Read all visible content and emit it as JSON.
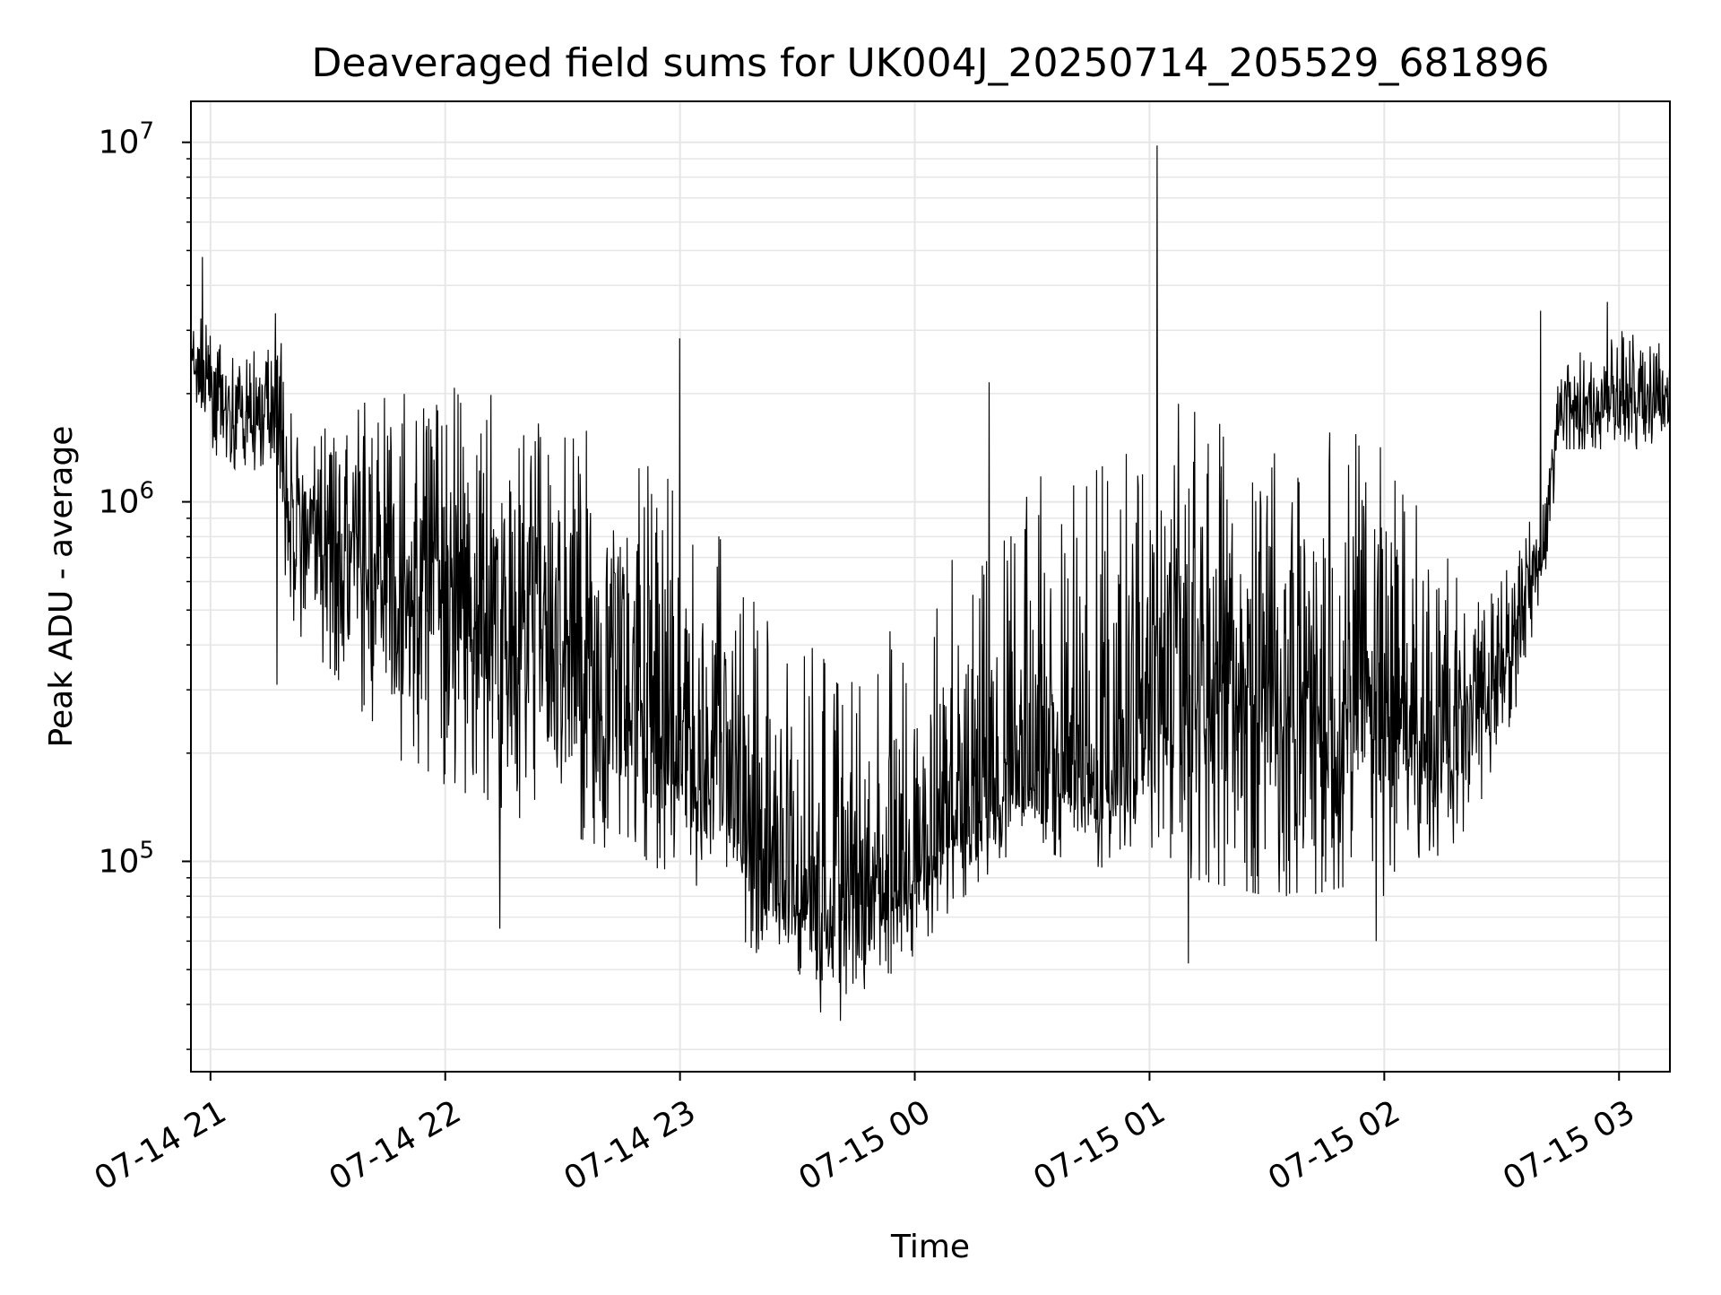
{
  "chart_data": {
    "type": "line",
    "title": "Deaveraged field sums for UK004J_20250714_205529_681896",
    "xlabel": "Time",
    "ylabel": "Peak ADU - average",
    "yscale": "log",
    "grid": true,
    "x_tick_labels": [
      "07-14 21",
      "07-14 22",
      "07-14 23",
      "07-15 00",
      "07-15 01",
      "07-15 02",
      "07-15 03"
    ],
    "x_ticks": [
      "2025-07-14T21:00",
      "2025-07-14T22:00",
      "2025-07-14T23:00",
      "2025-07-15T00:00",
      "2025-07-15T01:00",
      "2025-07-15T02:00",
      "2025-07-15T03:00"
    ],
    "y_ticks": [
      {
        "value": 100000,
        "base": "10",
        "exp": "5"
      },
      {
        "value": 1000000,
        "base": "10",
        "exp": "6"
      },
      {
        "value": 10000000,
        "base": "10",
        "exp": "7"
      }
    ],
    "xlim": [
      "2025-07-14T20:55",
      "2025-07-15T03:13"
    ],
    "ylim": [
      26000,
      13000000
    ],
    "line_color": "#000000",
    "grid_color": "#e6e6e6",
    "series": [
      {
        "x": [
          "2025-07-14T20:55",
          "2025-07-14T21:00",
          "2025-07-14T21:05",
          "2025-07-14T21:10",
          "2025-07-14T21:15",
          "2025-07-14T21:17",
          "2025-07-14T21:20",
          "2025-07-14T21:25",
          "2025-07-14T21:30",
          "2025-07-14T21:40",
          "2025-07-14T21:50",
          "2025-07-14T22:00",
          "2025-07-14T22:10",
          "2025-07-14T22:20",
          "2025-07-14T22:30",
          "2025-07-14T22:40",
          "2025-07-14T22:50",
          "2025-07-14T23:00",
          "2025-07-14T23:10",
          "2025-07-14T23:20",
          "2025-07-14T23:30",
          "2025-07-14T23:40",
          "2025-07-14T23:50",
          "2025-07-15T00:00",
          "2025-07-15T00:10",
          "2025-07-15T00:20",
          "2025-07-15T00:30",
          "2025-07-15T00:40",
          "2025-07-15T00:50",
          "2025-07-15T01:00",
          "2025-07-15T01:10",
          "2025-07-15T01:20",
          "2025-07-15T01:30",
          "2025-07-15T01:40",
          "2025-07-15T01:50",
          "2025-07-15T02:00",
          "2025-07-15T02:10",
          "2025-07-15T02:20",
          "2025-07-15T02:30",
          "2025-07-15T02:35",
          "2025-07-15T02:40",
          "2025-07-15T02:45",
          "2025-07-15T02:50",
          "2025-07-15T03:00",
          "2025-07-15T03:13"
        ],
        "median": [
          2400000,
          2000000,
          1700000,
          1700000,
          1800000,
          2000000,
          900000,
          750000,
          700000,
          650000,
          600000,
          550000,
          500000,
          450000,
          380000,
          320000,
          260000,
          200000,
          140000,
          95000,
          78000,
          75000,
          80000,
          90000,
          120000,
          150000,
          170000,
          160000,
          175000,
          220000,
          280000,
          300000,
          290000,
          270000,
          280000,
          260000,
          230000,
          220000,
          330000,
          500000,
          700000,
          1800000,
          1800000,
          1850000,
          1900000
        ],
        "low": [
          1800000,
          1400000,
          1200000,
          1200000,
          1300000,
          1400000,
          450000,
          380000,
          350000,
          250000,
          180000,
          160000,
          150000,
          130000,
          120000,
          110000,
          100000,
          90000,
          70000,
          55000,
          45000,
          42000,
          45000,
          55000,
          75000,
          95000,
          110000,
          100000,
          95000,
          100000,
          90000,
          85000,
          80000,
          80000,
          85000,
          80000,
          90000,
          120000,
          180000,
          300000,
          500000,
          1400000,
          1400000,
          1400000,
          1400000
        ],
        "high": [
          3500000,
          3000000,
          2500000,
          2600000,
          3000000,
          3500000,
          1800000,
          1500000,
          1700000,
          1900000,
          2000000,
          2100000,
          2000000,
          1900000,
          1700000,
          1500000,
          1300000,
          1100000,
          800000,
          500000,
          400000,
          380000,
          420000,
          500000,
          700000,
          900000,
          1200000,
          1100000,
          1300000,
          1800000,
          1900000,
          1700000,
          1600000,
          1500000,
          1600000,
          1400000,
          1000000,
          700000,
          600000,
          800000,
          1000000,
          2400000,
          2600000,
          3000000,
          2700000
        ]
      }
    ],
    "notable_peaks": [
      {
        "x": "2025-07-14T20:58",
        "y": 4800000
      },
      {
        "x": "2025-07-14T21:17",
        "y": 4200000
      },
      {
        "x": "2025-07-14T23:00",
        "y": 2850000
      },
      {
        "x": "2025-07-15T00:19",
        "y": 2150000
      },
      {
        "x": "2025-07-15T01:02",
        "y": 9800000
      },
      {
        "x": "2025-07-15T02:40",
        "y": 3400000
      },
      {
        "x": "2025-07-15T02:57",
        "y": 3600000
      }
    ],
    "notable_dips": [
      {
        "x": "2025-07-14T21:17",
        "y": 310000
      },
      {
        "x": "2025-07-14T22:14",
        "y": 65000
      },
      {
        "x": "2025-07-14T23:36",
        "y": 38000
      },
      {
        "x": "2025-07-14T23:41",
        "y": 36000
      },
      {
        "x": "2025-07-15T01:10",
        "y": 52000
      },
      {
        "x": "2025-07-15T01:58",
        "y": 60000
      }
    ]
  }
}
